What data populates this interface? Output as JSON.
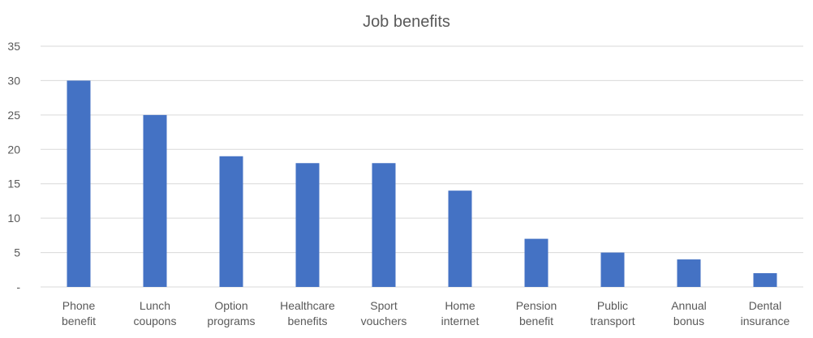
{
  "chart_data": {
    "type": "bar",
    "title": "Job benefits",
    "xlabel": "",
    "ylabel": "",
    "ylim": [
      0,
      35
    ],
    "yticks": [
      0,
      5,
      10,
      15,
      20,
      25,
      30,
      35
    ],
    "ytick_labels": [
      "-",
      "5",
      "10",
      "15",
      "20",
      "25",
      "30",
      "35"
    ],
    "grid": true,
    "legend": "none",
    "bar_color": "#4472C4",
    "categories": [
      [
        "Phone",
        "benefit"
      ],
      [
        "Lunch",
        "coupons"
      ],
      [
        "Option",
        "programs"
      ],
      [
        "Healthcare",
        "benefits"
      ],
      [
        "Sport",
        "vouchers"
      ],
      [
        "Home",
        "internet"
      ],
      [
        "Pension",
        "benefit"
      ],
      [
        "Public",
        "transport"
      ],
      [
        "Annual",
        "bonus"
      ],
      [
        "Dental",
        "insurance"
      ]
    ],
    "values": [
      30,
      25,
      19,
      18,
      18,
      14,
      7,
      5,
      4,
      2
    ]
  }
}
